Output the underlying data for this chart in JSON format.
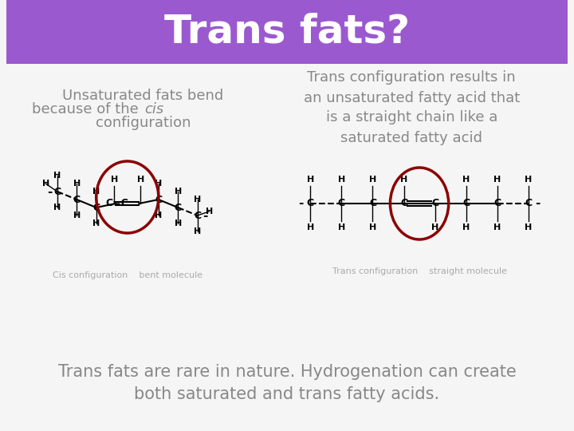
{
  "title": "Trans fats?",
  "title_bg_color": "#9b59d0",
  "title_text_color": "#ffffff",
  "bg_color": "#f5f5f5",
  "left_heading_line1": "Unsaturated fats bend",
  "left_heading_line2": "because of the ",
  "left_heading_italic": "cis",
  "left_heading_line3": "configuration",
  "right_heading": "Trans configuration results in\nan unsaturated fatty acid that\nis a straight chain like a\nsaturated fatty acid",
  "left_caption": "Cis configuration    bent molecule",
  "right_caption": "Trans configuration    straight molecule",
  "bottom_text": "Trans fats are rare in nature. Hydrogenation can create\nboth saturated and trans fatty acids.",
  "heading_color": "#888888",
  "caption_color": "#aaaaaa",
  "bottom_text_color": "#888888",
  "circle_color": "#8b0000",
  "text_color": "#222222"
}
